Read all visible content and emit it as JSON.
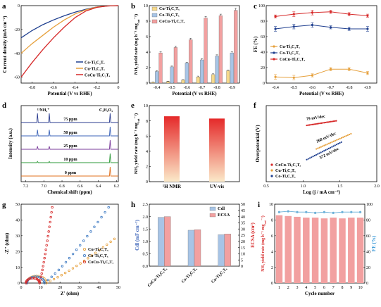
{
  "chart_data": [
    {
      "panel": "a",
      "type": "line",
      "xlabel": "Potential (V vs RHE)",
      "ylabel": "Current density (mA cm⁻²)",
      "xlim": [
        -0.9,
        0.0
      ],
      "ylim": [
        -65,
        0
      ],
      "xticks": [
        -0.8,
        -0.6,
        -0.4,
        -0.2,
        0.0
      ],
      "yticks": [
        -60,
        -40,
        -20,
        0
      ],
      "legend": "bottom-right",
      "series": [
        {
          "name": "Co-Ti₃C₂Tₓ",
          "color": "#1f3f8f",
          "x": [
            -0.9,
            -0.8,
            -0.7,
            -0.6,
            -0.5,
            -0.4,
            -0.3,
            -0.2,
            -0.1,
            -0.05,
            0.0
          ],
          "y": [
            -27,
            -21,
            -16,
            -12,
            -8.5,
            -5.5,
            -3,
            -1.2,
            -0.3,
            -0.1,
            0
          ]
        },
        {
          "name": "Cu-Ti₃C₂Tₓ",
          "color": "#e6a03c",
          "x": [
            -0.9,
            -0.8,
            -0.7,
            -0.6,
            -0.5,
            -0.4,
            -0.3,
            -0.2,
            -0.1,
            0.0
          ],
          "y": [
            -40,
            -32,
            -25,
            -18,
            -12,
            -7,
            -3.5,
            -1.2,
            -0.3,
            0
          ]
        },
        {
          "name": "CoCu-Ti₃C₂Tₓ",
          "color": "#d62828",
          "x": [
            -0.9,
            -0.8,
            -0.7,
            -0.6,
            -0.5,
            -0.4,
            -0.3,
            -0.2,
            -0.1,
            0.0
          ],
          "y": [
            -60,
            -48,
            -37,
            -27,
            -18,
            -10,
            -4.5,
            -1.5,
            -0.3,
            0
          ]
        }
      ]
    },
    {
      "panel": "b",
      "type": "bar",
      "xlabel": "Potential (V vs RHE)",
      "ylabel": "NH₃ yield rate (mg h⁻¹ mg",
      "ylabel_sub": "cat",
      "ylabel_end": "⁻¹)",
      "categories": [
        "-0.4",
        "-0.5",
        "-0.6",
        "-0.7",
        "-0.8",
        "-0.9"
      ],
      "ylim": [
        0,
        10
      ],
      "yticks": [
        0,
        2,
        4,
        6,
        8,
        10
      ],
      "legend": "top-left",
      "series": [
        {
          "name": "Cu-Ti₃C₂Tₓ",
          "color": "#f6d98a",
          "values": [
            0.1,
            0.2,
            0.4,
            0.8,
            1.1,
            1.6
          ],
          "err": [
            0.05,
            0.05,
            0.05,
            0.1,
            0.1,
            0.1
          ]
        },
        {
          "name": "Co-Ti₃C₂Tₓ",
          "color": "#a7c4e6",
          "values": [
            1.5,
            2.1,
            2.6,
            3.0,
            3.5,
            3.9
          ],
          "err": [
            0.1,
            0.1,
            0.1,
            0.15,
            0.15,
            0.15
          ]
        },
        {
          "name": "CoCu-Ti₃C₂Tₓ",
          "color": "#f2a0a0",
          "values": [
            3.9,
            4.6,
            5.6,
            8.4,
            8.7,
            9.4
          ],
          "err": [
            0.15,
            0.15,
            0.2,
            0.2,
            0.2,
            0.25
          ]
        }
      ]
    },
    {
      "panel": "c",
      "type": "line",
      "xlabel": "Potential (V vs RHE)",
      "ylabel": "FE (%)",
      "categories": [
        "-0.4",
        "-0.5",
        "-0.6",
        "-0.7",
        "-0.8",
        "-0.9"
      ],
      "ylim": [
        0,
        100
      ],
      "yticks": [
        0,
        20,
        40,
        60,
        80,
        100
      ],
      "legend": "bottom-left",
      "series": [
        {
          "name": "Cu-Ti₃C₂Tₓ",
          "color": "#e6a03c",
          "values": [
            8,
            7,
            10,
            18,
            18,
            13
          ],
          "err": [
            3,
            3,
            2,
            2,
            2,
            2
          ]
        },
        {
          "name": "Co-Ti₃C₂Tₓ",
          "color": "#1f3f8f",
          "values": [
            70,
            73,
            75,
            72,
            70,
            70
          ],
          "err": [
            3,
            3,
            3,
            2,
            2,
            3
          ]
        },
        {
          "name": "CoCu-Ti₃C₂Tₓ",
          "color": "#d62828",
          "values": [
            86,
            89,
            91,
            92,
            89,
            87
          ],
          "err": [
            2,
            3,
            3,
            2,
            2,
            2
          ]
        }
      ]
    },
    {
      "panel": "d",
      "type": "line",
      "xlabel": "Chemical shift (ppm)",
      "ylabel": "Intensity (a.u.)",
      "xticks": [
        "7.2",
        "7.0",
        "6.8",
        "6.6",
        "6.4",
        "6.2"
      ],
      "peak_labels": [
        "¹⁵NH₄⁺",
        "C₄H₄O₄"
      ],
      "series": [
        {
          "name": "75 ppm",
          "color": "#2a3b8f",
          "level": 75
        },
        {
          "name": "50 ppm",
          "color": "#3b63b8",
          "level": 50
        },
        {
          "name": "25 ppm",
          "color": "#7a3b9b",
          "level": 25
        },
        {
          "name": "10 ppm",
          "color": "#2e9a3a",
          "level": 10
        },
        {
          "name": "0 ppm",
          "color": "#e0701e",
          "level": 0
        }
      ]
    },
    {
      "panel": "e",
      "type": "bar",
      "ylabel": "NH₃ yield rate (mg h⁻¹ mg",
      "ylabel_sub": "cat",
      "ylabel_end": "⁻¹)",
      "categories": [
        "¹H NMR",
        "UV-vis"
      ],
      "values": [
        8.6,
        8.3
      ],
      "ylim": [
        0,
        10
      ],
      "yticks": [
        0,
        2,
        4,
        6,
        8,
        10
      ]
    },
    {
      "panel": "f",
      "type": "scatter",
      "xlabel": "Log (j / mA cm⁻²)",
      "ylabel": "Overpotential (V)",
      "xlim": [
        0.5,
        2.0
      ],
      "ylim": [
        0,
        1
      ],
      "xticks": [
        "0.5",
        "1.0",
        "1.5",
        "2.0"
      ],
      "legend": "bottom-left",
      "series": [
        {
          "name": "CoCu-Ti₃C₂Tₓ",
          "color": "#d62828",
          "slope_label": "79 mV/dec",
          "x": [
            1.05,
            1.45
          ],
          "y": [
            0.74,
            0.8
          ]
        },
        {
          "name": "Cu-Ti₃C₂Tₓ",
          "color": "#e6a03c",
          "slope_label": "268 mV/dec",
          "x": [
            1.18,
            1.65
          ],
          "y": [
            0.43,
            0.63
          ]
        },
        {
          "name": "Co-Ti₃C₂Tₓ",
          "color": "#1f3f8f",
          "slope_label": "372 mV/dec",
          "x": [
            1.05,
            1.52
          ],
          "y": [
            0.29,
            0.52
          ]
        }
      ]
    },
    {
      "panel": "g",
      "type": "scatter",
      "xlabel": "Z' (ohm)",
      "ylabel": "-Z'' (ohm)",
      "xlim": [
        0,
        50
      ],
      "ylim": [
        0,
        50
      ],
      "xticks": [
        0,
        10,
        20,
        30,
        40,
        50
      ],
      "yticks": [
        0,
        10,
        20,
        30,
        40,
        50
      ],
      "legend": "middle-right",
      "series": [
        {
          "name": "Cu-Ti₃C₂Tₓ",
          "color": "#e6a03c",
          "r0": 3,
          "rct": 10,
          "tail_end": [
            48,
            28
          ]
        },
        {
          "name": "Co-Ti₃C₂Tₓ",
          "color": "#3b78c2",
          "r0": 3,
          "rct": 9,
          "tail_end": [
            45,
            48
          ]
        },
        {
          "name": "CoCu-Ti₃C₂Tₓ",
          "color": "#d62828",
          "r0": 2.5,
          "rct": 7,
          "tail_end": [
            16,
            48
          ]
        }
      ]
    },
    {
      "panel": "h",
      "type": "bar",
      "ylabel": "Cdl (mF cm⁻²)",
      "y2label": "ECSA (cm²)",
      "categories": [
        "CoCu-Ti₃C₂Tₓ",
        "Co-Ti₃C₂Tₓ",
        "Cu-Ti₃C₂Tₓ"
      ],
      "ylim": [
        0,
        2.5
      ],
      "yticks": [
        "0.0",
        "0.5",
        "1.0",
        "1.5",
        "2.0",
        "2.5"
      ],
      "y2lim": [
        0,
        50
      ],
      "y2ticks": [
        0,
        5,
        10,
        15,
        20,
        25,
        30,
        35,
        40,
        45,
        50
      ],
      "legend": "top-right",
      "series": [
        {
          "name": "Cdl",
          "color": "#a7c4e6",
          "axis": "left",
          "values": [
            1.97,
            1.45,
            1.27
          ]
        },
        {
          "name": "ECSA",
          "color": "#f2a0a0",
          "axis": "right",
          "values": [
            40,
            29.5,
            26
          ]
        }
      ]
    },
    {
      "panel": "i",
      "type": "bar",
      "xlabel": "Cycle number",
      "ylabel": "NH₃ yield rate (mg h⁻¹ mg",
      "ylabel_sub": "cat",
      "ylabel_end": "⁻¹)",
      "y2label": "FE (%)",
      "categories": [
        "1",
        "2",
        "3",
        "4",
        "5",
        "6",
        "7",
        "8",
        "9",
        "10"
      ],
      "ylim": [
        0,
        10
      ],
      "yticks": [
        0,
        2,
        4,
        6,
        8,
        10
      ],
      "y2lim": [
        0,
        100
      ],
      "y2ticks": [
        0,
        20,
        40,
        60,
        80,
        100
      ],
      "series": [
        {
          "name": "NH₃ yield rate",
          "color": "#f2a0a0",
          "axis": "left",
          "values": [
            8.6,
            8.5,
            8.4,
            8.3,
            8.3,
            8.2,
            8.3,
            8.2,
            8.3,
            8.3
          ]
        },
        {
          "name": "FE",
          "color": "#6bb0d8",
          "axis": "right",
          "values": [
            90,
            91,
            90,
            90,
            89,
            90,
            89,
            90,
            90,
            90
          ]
        }
      ]
    }
  ]
}
